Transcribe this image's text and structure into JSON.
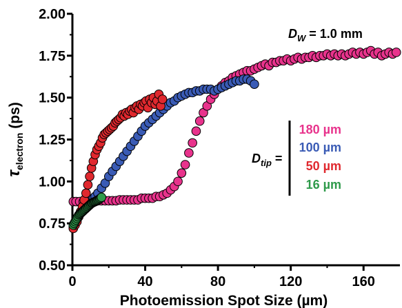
{
  "chart_data": {
    "type": "scatter",
    "xlabel": "Photoemission Spot Size (µm)",
    "ylabel": "τelectron (ps)",
    "ylabel_main": "τ",
    "ylabel_sub": "electron",
    "ylabel_unit": " (ps)",
    "xlim": [
      0,
      180
    ],
    "ylim": [
      0.5,
      2.0
    ],
    "x_ticks": [
      0,
      40,
      80,
      120,
      160
    ],
    "y_ticks": [
      0.5,
      0.75,
      1.0,
      1.25,
      1.5,
      1.75,
      2.0
    ],
    "x_tick_labels": [
      "0",
      "40",
      "80",
      "120",
      "160"
    ],
    "y_tick_labels": [
      "0.50",
      "0.75",
      "1.00",
      "1.25",
      "1.50",
      "1.75",
      "2.00"
    ],
    "grid": false,
    "annotation": {
      "text": "DW = 1.0 mm",
      "main": "D",
      "sub": "W",
      "rest": " = 1.0 mm"
    },
    "legend_label": {
      "text": "Dtip =",
      "main": "D",
      "sub": "tip",
      "rest": " ="
    },
    "legend_placement": "right",
    "series": [
      {
        "name": "180 µm",
        "color": "#e8338c",
        "x": [
          0.5,
          2,
          4,
          6,
          8,
          10,
          12,
          14,
          16,
          18,
          20,
          22,
          24,
          26,
          28,
          30,
          32,
          34,
          36,
          38,
          40,
          42,
          44,
          46,
          48,
          50,
          52,
          54,
          56,
          58,
          60,
          62,
          64,
          66,
          68,
          70,
          72,
          74,
          76,
          78,
          80,
          82,
          84,
          86,
          88,
          90,
          92,
          94,
          96,
          98,
          100,
          102,
          104,
          106,
          108,
          110,
          112,
          114,
          116,
          118,
          120,
          122,
          124,
          126,
          128,
          130,
          132,
          134,
          136,
          138,
          140,
          142,
          144,
          146,
          148,
          150,
          152,
          154,
          156,
          158,
          160,
          162,
          164,
          166,
          168,
          170,
          172,
          174,
          176,
          178
        ],
        "y": [
          0.88,
          0.88,
          0.88,
          0.88,
          0.88,
          0.88,
          0.88,
          0.885,
          0.885,
          0.885,
          0.885,
          0.885,
          0.885,
          0.89,
          0.89,
          0.89,
          0.89,
          0.89,
          0.89,
          0.9,
          0.9,
          0.9,
          0.9,
          0.91,
          0.91,
          0.92,
          0.93,
          0.95,
          0.97,
          1.0,
          1.05,
          1.1,
          1.17,
          1.23,
          1.3,
          1.36,
          1.41,
          1.45,
          1.49,
          1.52,
          1.55,
          1.57,
          1.59,
          1.6,
          1.62,
          1.63,
          1.64,
          1.65,
          1.66,
          1.66,
          1.67,
          1.68,
          1.69,
          1.7,
          1.69,
          1.71,
          1.71,
          1.72,
          1.72,
          1.73,
          1.72,
          1.73,
          1.74,
          1.73,
          1.74,
          1.74,
          1.75,
          1.74,
          1.75,
          1.75,
          1.76,
          1.75,
          1.76,
          1.75,
          1.76,
          1.75,
          1.76,
          1.77,
          1.76,
          1.77,
          1.76,
          1.77,
          1.78,
          1.76,
          1.77,
          1.75,
          1.76,
          1.77,
          1.76,
          1.77
        ]
      },
      {
        "name": "100 µm",
        "color": "#3a5bb5",
        "x": [
          0.5,
          1.5,
          2.5,
          3.5,
          4.5,
          5.5,
          6.5,
          7.5,
          8.5,
          9.5,
          10.5,
          11.5,
          12.5,
          14,
          16,
          18,
          20,
          22,
          24,
          26,
          28,
          30,
          32,
          34,
          36,
          38,
          40,
          42,
          44,
          46,
          48,
          50,
          52,
          54,
          56,
          58,
          60,
          62,
          64,
          66,
          68,
          70,
          72,
          74,
          76,
          78,
          80,
          82,
          84,
          86,
          88,
          90,
          92,
          94,
          96,
          98,
          100
        ],
        "y": [
          0.73,
          0.75,
          0.77,
          0.79,
          0.81,
          0.83,
          0.85,
          0.86,
          0.87,
          0.88,
          0.89,
          0.9,
          0.91,
          0.93,
          0.96,
          0.99,
          1.03,
          1.06,
          1.09,
          1.12,
          1.15,
          1.18,
          1.21,
          1.24,
          1.27,
          1.3,
          1.33,
          1.35,
          1.37,
          1.39,
          1.41,
          1.43,
          1.45,
          1.47,
          1.48,
          1.5,
          1.51,
          1.52,
          1.53,
          1.53,
          1.54,
          1.54,
          1.55,
          1.55,
          1.55,
          1.54,
          1.55,
          1.56,
          1.57,
          1.58,
          1.59,
          1.6,
          1.6,
          1.61,
          1.61,
          1.6,
          1.58
        ]
      },
      {
        "name": "50 µm",
        "color": "#e0282e",
        "x": [
          0.5,
          1.5,
          2.5,
          3.5,
          4.5,
          5.5,
          6.5,
          7.5,
          8.5,
          9.5,
          10.5,
          11.5,
          12.5,
          13.5,
          14.5,
          15.5,
          16.5,
          17.5,
          18.5,
          19.5,
          20.5,
          21.5,
          22.5,
          23.5,
          24.5,
          25.5,
          26.5,
          27.5,
          28.5,
          29.5,
          30.5,
          31.5,
          32.5,
          33.5,
          34.5,
          35.5,
          36.5,
          37.5,
          38.5,
          39.5,
          40.5,
          41.5,
          42.5,
          43.5,
          44.5,
          45.5,
          46.5,
          47.5,
          48.5,
          49.5
        ],
        "y": [
          0.72,
          0.74,
          0.76,
          0.79,
          0.82,
          0.85,
          0.89,
          0.93,
          0.98,
          1.03,
          1.08,
          1.12,
          1.16,
          1.19,
          1.21,
          1.23,
          1.26,
          1.28,
          1.29,
          1.3,
          1.31,
          1.32,
          1.33,
          1.35,
          1.36,
          1.37,
          1.38,
          1.4,
          1.39,
          1.41,
          1.4,
          1.42,
          1.43,
          1.41,
          1.44,
          1.45,
          1.43,
          1.46,
          1.45,
          1.47,
          1.48,
          1.44,
          1.49,
          1.47,
          1.5,
          1.46,
          1.48,
          1.52,
          1.45,
          1.49
        ]
      },
      {
        "name": "16 µm",
        "color": "#2e9a4a",
        "x": [
          0.5,
          1,
          1.5,
          2,
          2.5,
          3,
          3.5,
          4,
          4.5,
          5,
          5.5,
          6,
          6.5,
          7,
          7.5,
          8,
          8.5,
          9,
          9.5,
          10,
          10.5,
          11,
          11.5,
          12,
          12.5,
          13,
          13.5,
          14,
          14.5,
          15,
          15.5,
          16
        ],
        "y": [
          0.74,
          0.75,
          0.76,
          0.77,
          0.78,
          0.79,
          0.8,
          0.805,
          0.81,
          0.815,
          0.82,
          0.825,
          0.83,
          0.835,
          0.84,
          0.845,
          0.85,
          0.855,
          0.86,
          0.865,
          0.87,
          0.872,
          0.875,
          0.878,
          0.88,
          0.883,
          0.886,
          0.889,
          0.892,
          0.896,
          0.9,
          0.905
        ]
      }
    ]
  }
}
